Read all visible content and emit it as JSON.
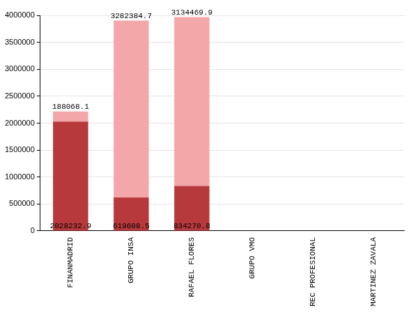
{
  "chart_data": {
    "type": "bar",
    "stacked": true,
    "data_labels": true,
    "grid": true,
    "categories": [
      "FINANMADRID",
      "GRUPO INSA",
      "RAFAEL FLORES",
      "GRUPO VMO",
      "REC PROFESIONAL",
      "MARTINEZ ZAVALA"
    ],
    "series": [
      {
        "color": "#b8393c",
        "values": [
          2028232.9,
          619608.5,
          834270.8,
          null,
          null,
          null
        ]
      },
      {
        "color": "#f4a7a9",
        "values": [
          188068.1,
          3282384.7,
          3134469.9,
          null,
          null,
          null
        ]
      }
    ],
    "ylim": [
      0,
      4000000
    ],
    "yticks": [
      0,
      500000,
      1000000,
      1500000,
      2000000,
      2500000,
      3000000,
      3500000,
      4000000
    ]
  }
}
